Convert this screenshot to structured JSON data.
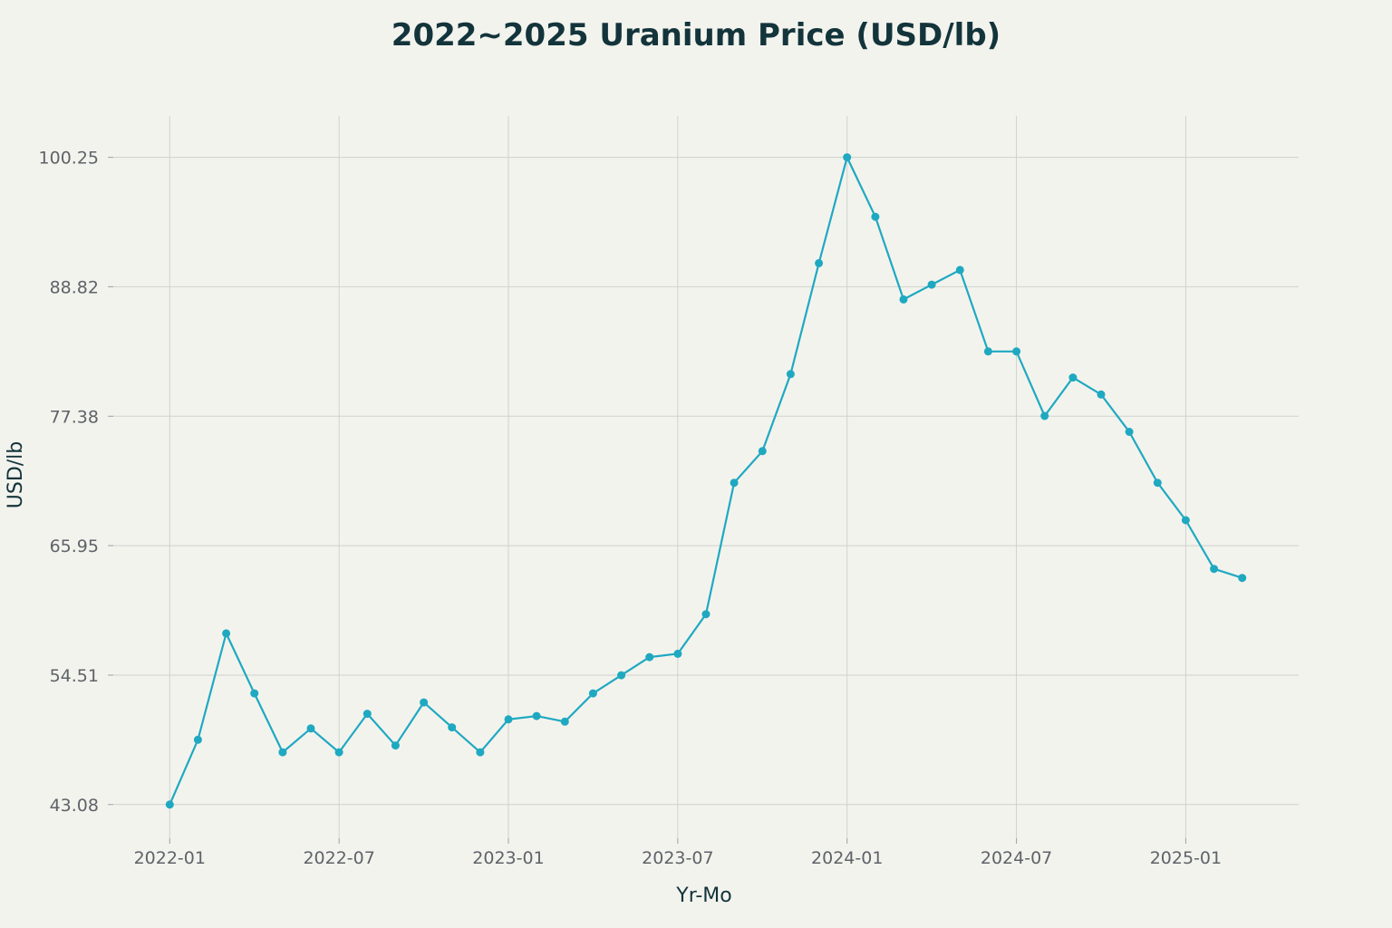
{
  "chart_data": {
    "type": "line",
    "title": "2022~2025 Uranium Price (USD/lb)",
    "xlabel": "Yr-Mo",
    "ylabel": "USD/lb",
    "ylim": [
      40.1,
      103.9
    ],
    "xlim": [
      "2021-11",
      "2025-05"
    ],
    "grid": true,
    "x_ticks": [
      "2022-01",
      "2022-07",
      "2023-01",
      "2023-07",
      "2024-01",
      "2024-07",
      "2025-01"
    ],
    "y_ticks": [
      "43.08",
      "54.51",
      "65.95",
      "77.38",
      "88.82",
      "100.25"
    ],
    "colors": {
      "series": "#1fa9c1",
      "background": "#f3f3ee",
      "grid": "#cfd2cc"
    },
    "series": [
      {
        "x": [
          "2022-01",
          "2022-02",
          "2022-03",
          "2022-04",
          "2022-05",
          "2022-06",
          "2022-07",
          "2022-08",
          "2022-09",
          "2022-10",
          "2022-11",
          "2022-12",
          "2023-01",
          "2023-02",
          "2023-03",
          "2023-04",
          "2023-05",
          "2023-06",
          "2023-07",
          "2023-08",
          "2023-09",
          "2023-10",
          "2023-11",
          "2023-12",
          "2024-01",
          "2024-02",
          "2024-03",
          "2024-04",
          "2024-05",
          "2024-06",
          "2024-07",
          "2024-08",
          "2024-09",
          "2024-10",
          "2024-11",
          "2024-12",
          "2025-01",
          "2025-02",
          "2025-03"
        ],
        "values": [
          43.08,
          48.8,
          58.2,
          52.9,
          47.7,
          49.8,
          47.7,
          51.1,
          48.3,
          52.1,
          49.9,
          47.7,
          50.6,
          50.9,
          50.4,
          52.9,
          54.5,
          56.1,
          56.4,
          59.9,
          71.5,
          74.3,
          81.1,
          90.9,
          100.25,
          95.0,
          87.7,
          89.0,
          90.3,
          83.1,
          83.1,
          77.4,
          80.8,
          79.3,
          76.0,
          71.5,
          68.2,
          63.9,
          63.1
        ]
      }
    ]
  }
}
